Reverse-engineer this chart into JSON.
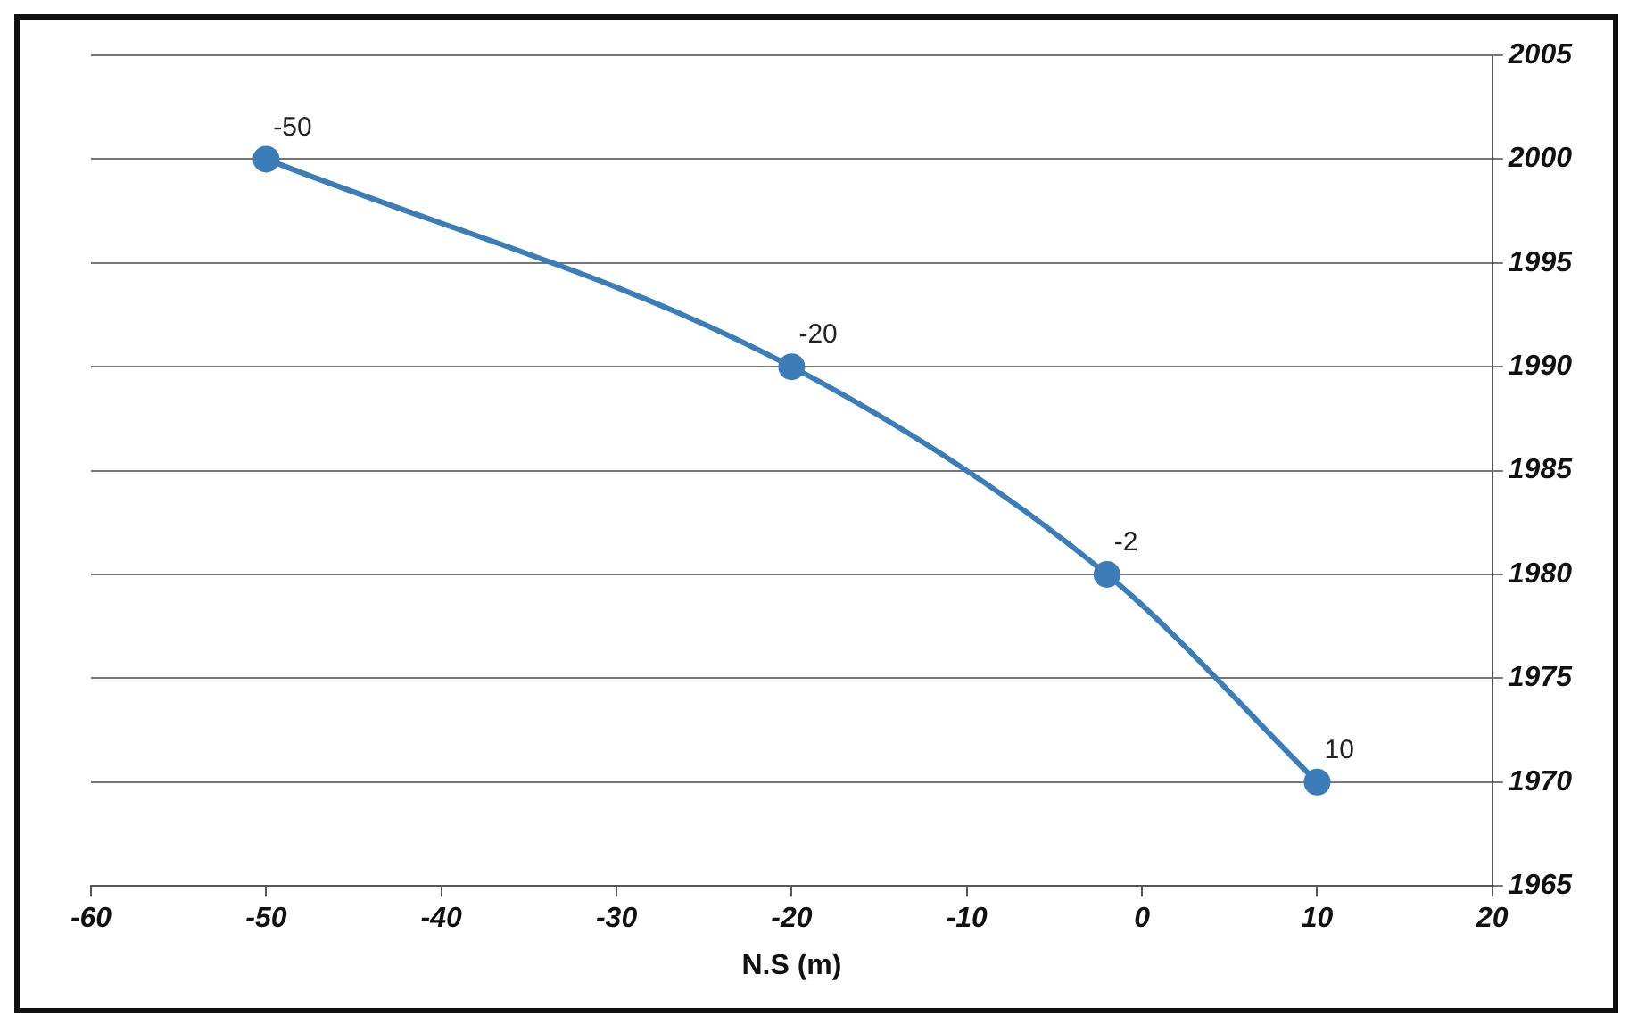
{
  "chart_data": {
    "type": "line",
    "xlabel": "N.S (m)",
    "x": [
      -50,
      -20,
      -2,
      10
    ],
    "series": [
      {
        "color": "#3a7db8",
        "values": [
          2000,
          1990,
          1980,
          1970
        ]
      }
    ],
    "annotations": [
      {
        "text": "-50",
        "x": -50,
        "y": 2000
      },
      {
        "text": "-20",
        "x": -20,
        "y": 1990
      },
      {
        "text": "-2",
        "x": -2,
        "y": 1980
      },
      {
        "text": "10",
        "x": 10,
        "y": 1970
      }
    ],
    "xlim": [
      -60,
      20
    ],
    "xticks": [
      -60,
      -50,
      -40,
      -30,
      -20,
      -10,
      0,
      10,
      20
    ],
    "ylim": [
      1965,
      2005
    ],
    "yticks": [
      1965,
      1970,
      1975,
      1980,
      1985,
      1990,
      1995,
      2000,
      2005
    ],
    "grid": "y",
    "marker": "circle",
    "line_style": "solid",
    "legend": false
  }
}
